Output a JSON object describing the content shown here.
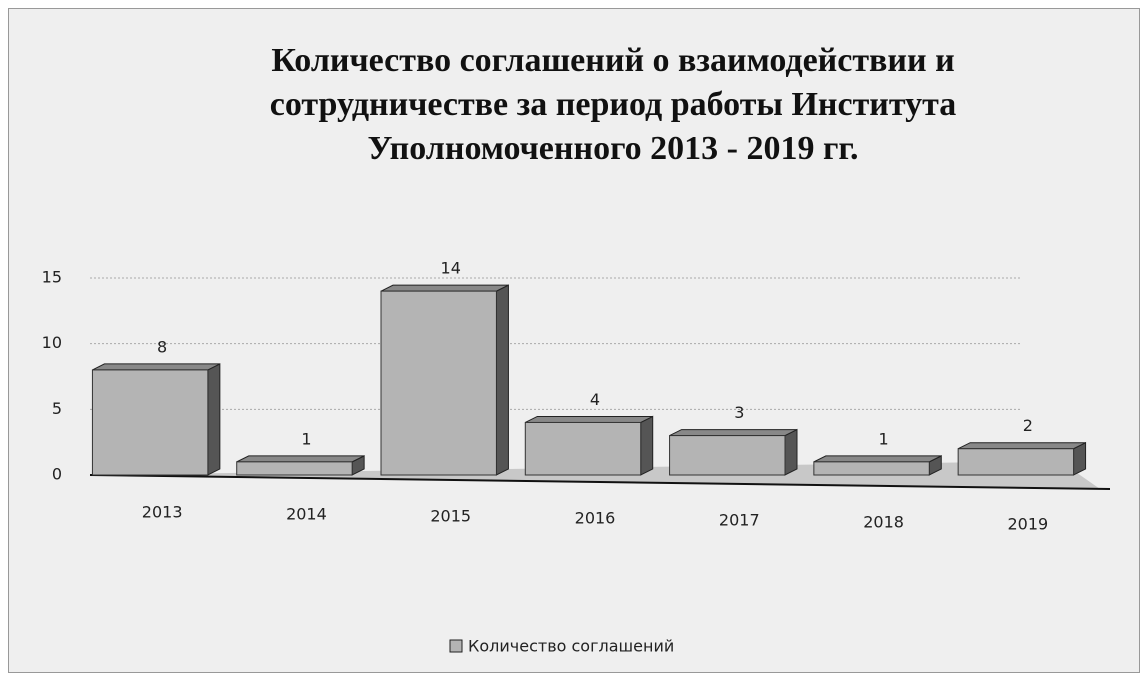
{
  "chart_data": {
    "type": "bar",
    "title": "Количество соглашений о взаимодействии и сотрудничестве за период работы Института Уполномоченного 2013 - 2019 гг.",
    "categories": [
      "2013",
      "2014",
      "2015",
      "2016",
      "2017",
      "2018",
      "2019"
    ],
    "series": [
      {
        "name": "Количество соглашений",
        "color": "#b4b4b4",
        "values": [
          8,
          1,
          14,
          4,
          3,
          1,
          2
        ]
      }
    ],
    "ylim": [
      0,
      15
    ],
    "yticks": [
      0,
      5,
      10,
      15
    ],
    "grid": true,
    "legend": "bottom"
  }
}
